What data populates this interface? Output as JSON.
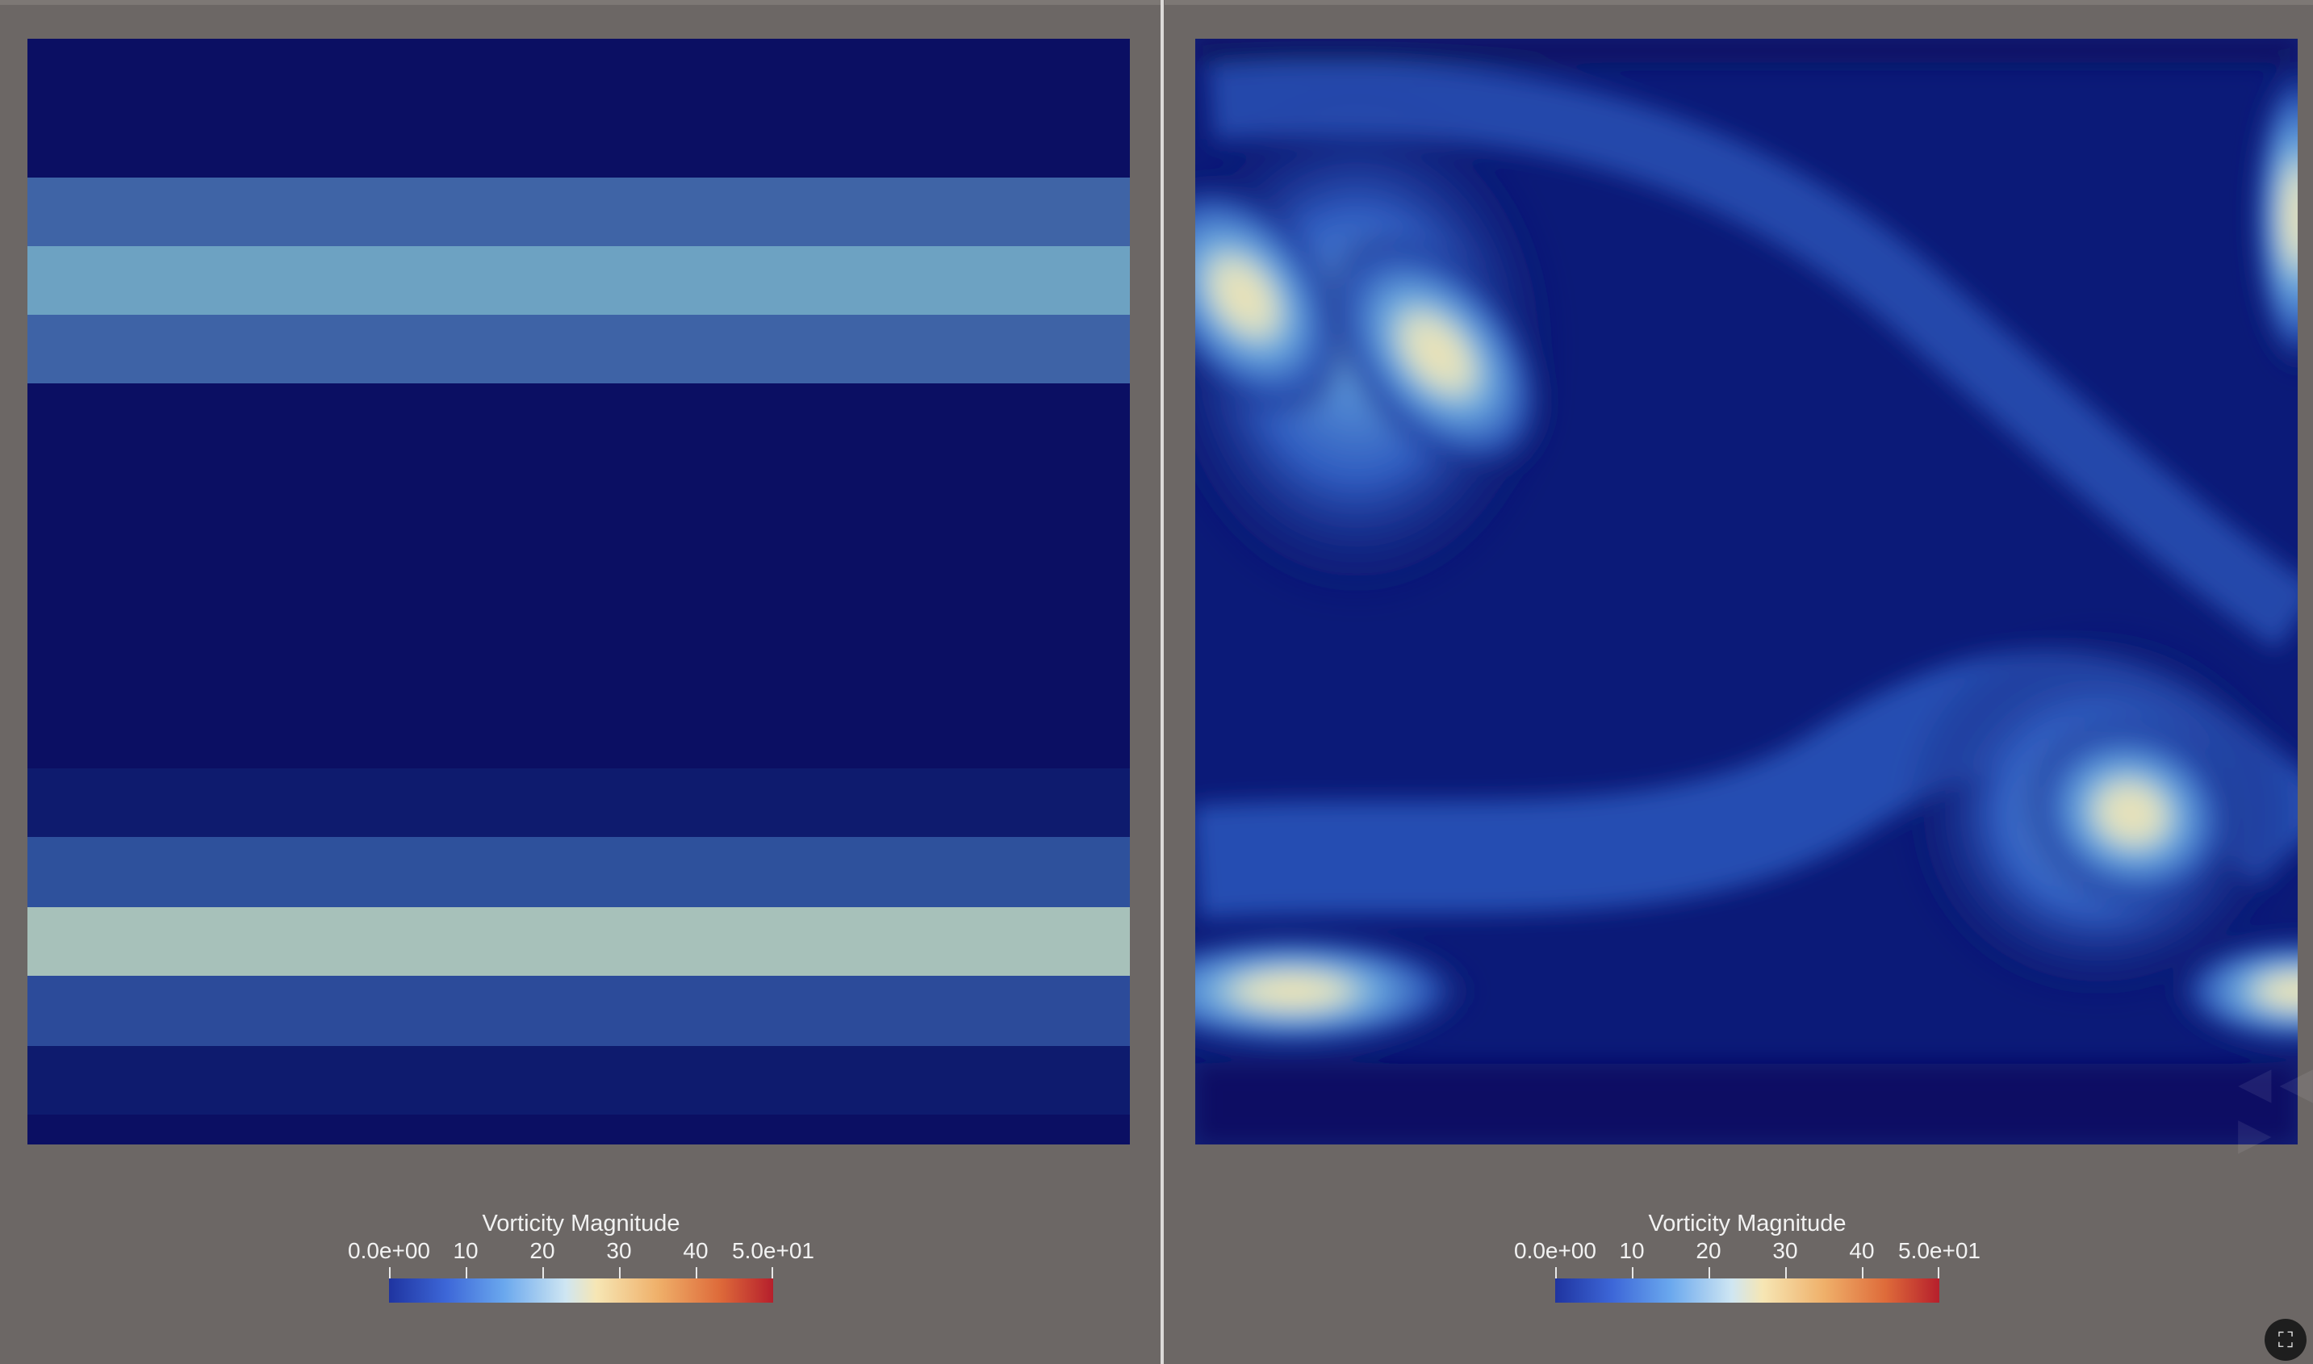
{
  "colors": {
    "background": "#6c6765",
    "field_low": "#0b0f63",
    "field_mid": "#4a7bc6",
    "field_high": "#f0e3b0"
  },
  "left_view": {
    "legend": {
      "title": "Vorticity Magnitude",
      "ticks": [
        "0.0e+00",
        "10",
        "20",
        "30",
        "40",
        "5.0e+01"
      ]
    }
  },
  "right_view": {
    "legend": {
      "title": "Vorticity Magnitude",
      "ticks": [
        "0.0e+00",
        "10",
        "20",
        "30",
        "40",
        "5.0e+01"
      ]
    }
  },
  "corner_button": {
    "icon": "screenshot-icon"
  }
}
